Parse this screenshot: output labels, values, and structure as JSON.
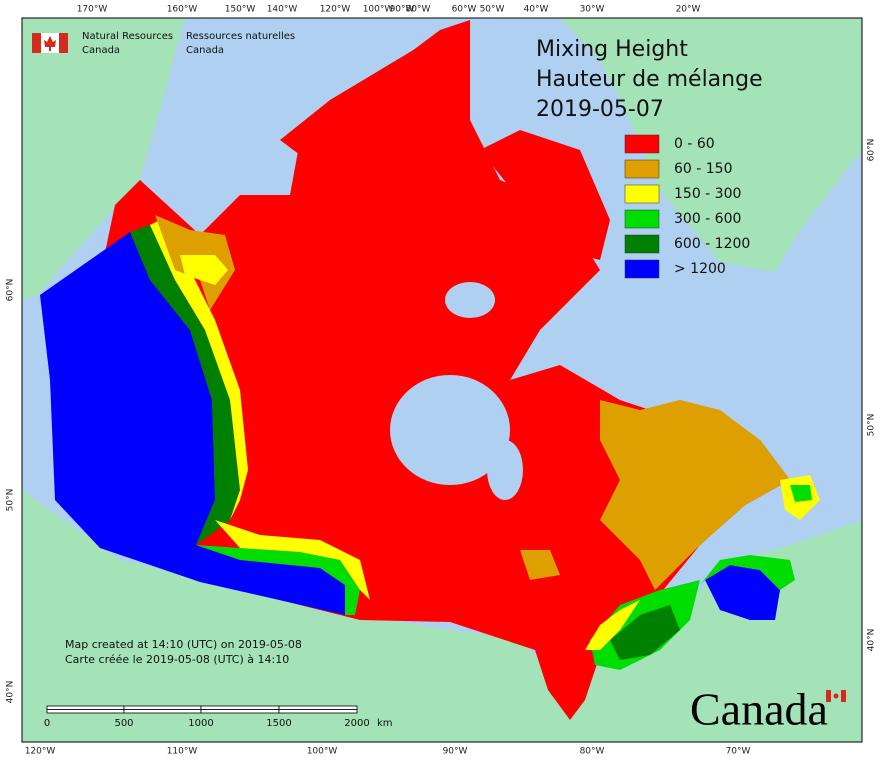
{
  "agency": {
    "en_line1": "Natural Resources",
    "en_line2": "Canada",
    "fr_line1": "Ressources naturelles",
    "fr_line2": "Canada"
  },
  "title": {
    "line1": "Mixing Height",
    "line2": "Hauteur de mélange",
    "date": "2019-05-07"
  },
  "legend": [
    {
      "label": "0 - 60",
      "color": "#ff0000"
    },
    {
      "label": "60 - 150",
      "color": "#dda000"
    },
    {
      "label": "150 - 300",
      "color": "#ffff00"
    },
    {
      "label": "300 - 600",
      "color": "#00dd00"
    },
    {
      "label": "600 - 1200",
      "color": "#008000"
    },
    {
      "label": "> 1200",
      "color": "#0000ff"
    }
  ],
  "top_axis_labels": [
    "170°W",
    "160°W",
    "150°W",
    "140°W",
    "120°W",
    "100°W",
    "90°W",
    "80°W",
    "60°W",
    "50°W",
    "40°W",
    "30°W",
    "20°W"
  ],
  "bottom_axis_labels": [
    "120°W",
    "110°W",
    "100°W",
    "90°W",
    "80°W",
    "70°W"
  ],
  "left_axis_labels": [
    "60°N",
    "50°N",
    "40°N"
  ],
  "right_axis_labels": [
    "60°N",
    "50°N",
    "40°N"
  ],
  "note": [
    "Map created at 14:10 (UTC) on 2019-05-08",
    "Carte créée le 2019-05-08 (UTC) à 14:10"
  ],
  "scale_bar": {
    "labels": [
      "0",
      "500",
      "1000",
      "1500",
      "2000"
    ],
    "unit": "km"
  },
  "wordmark": "Canada"
}
